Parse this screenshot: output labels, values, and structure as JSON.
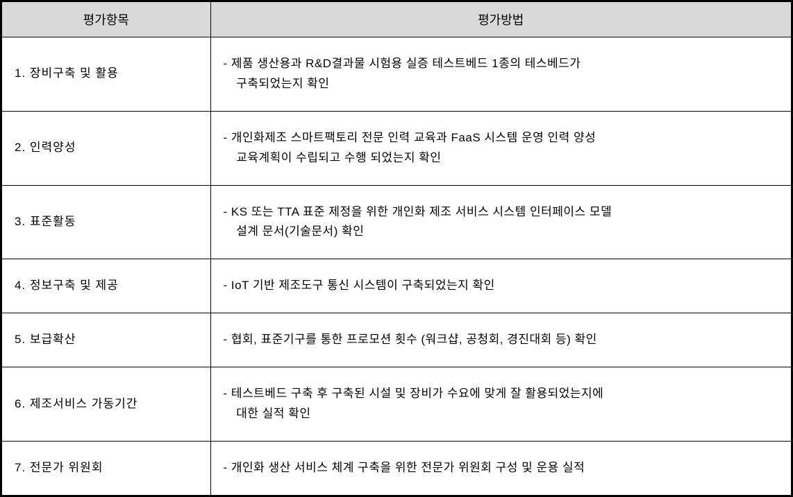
{
  "table": {
    "header_bg": "#d9d9d9",
    "border_color": "#000000",
    "columns": {
      "item": "평가항목",
      "method": "평가방법"
    },
    "rows": [
      {
        "item": "1. 장비구축 및 활용",
        "method_l1": "- 제품 생산용과 R&D결과물 시험용 실증 테스트베드 1종의 테스베드가",
        "method_l2": "구축되었는지 확인"
      },
      {
        "item": "2. 인력양성",
        "method_l1": "- 개인화제조 스마트팩토리 전문 인력 교육과 FaaS 시스템 운영 인력 양성",
        "method_l2": "교육계획이 수립되고 수행 되었는지 확인"
      },
      {
        "item": "3. 표준활동",
        "method_l1": "- KS 또는 TTA 표준 제정을 위한 개인화 제조 서비스 시스템 인터페이스 모델",
        "method_l2": "설계 문서(기술문서) 확인"
      },
      {
        "item": "4. 정보구축 및 제공",
        "method_l1": "- IoT 기반 제조도구 통신 시스템이 구축되었는지 확인",
        "method_l2": ""
      },
      {
        "item": "5. 보급확산",
        "method_l1": "- 협회, 표준기구를 통한 프로모션 횟수 (워크샵, 공청회, 경진대회 등) 확인",
        "method_l2": ""
      },
      {
        "item": "6. 제조서비스 가동기간",
        "method_l1": "- 테스트베드 구축 후 구축된  시설 및 장비가 수요에 맞게 잘 활용되었는지에",
        "method_l2": "대한 실적 확인"
      },
      {
        "item": "7. 전문가 위원회",
        "method_l1": "- 개인화 생산 서비스 체계 구축을 위한 전문가 위원회 구성 및 운용 실적",
        "method_l2": ""
      }
    ]
  }
}
